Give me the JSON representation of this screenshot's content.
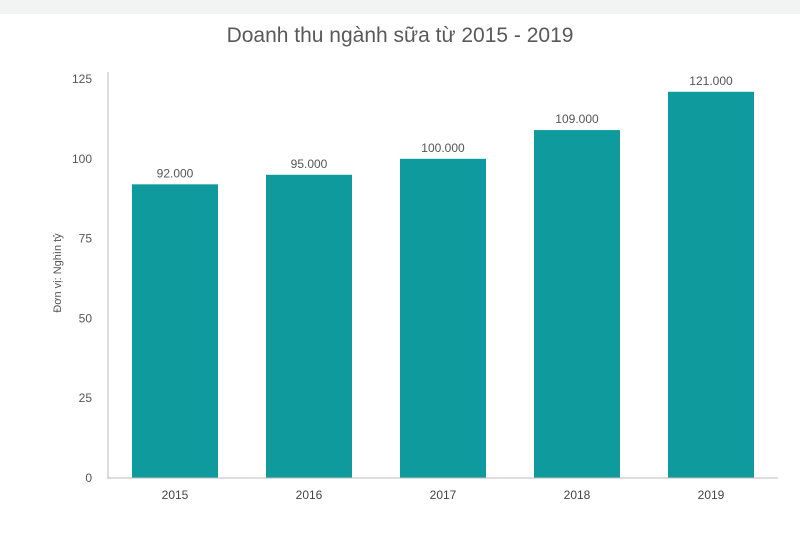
{
  "chart_data": {
    "type": "bar",
    "title": "Doanh thu ngành sữa từ 2015 - 2019",
    "ylabel": "Đơn vị: Nghìn tỷ",
    "xlabel": "",
    "categories": [
      "2015",
      "2016",
      "2017",
      "2018",
      "2019"
    ],
    "values": [
      92,
      95,
      100,
      109,
      121
    ],
    "data_labels": [
      "92.000",
      "95.000",
      "100.000",
      "109.000",
      "121.000"
    ],
    "ylim": [
      0,
      125
    ],
    "yticks": [
      "0",
      "25",
      "50",
      "75",
      "100",
      "125"
    ],
    "bar_color": "#0f9b9e",
    "grid": false,
    "legend": "none"
  }
}
